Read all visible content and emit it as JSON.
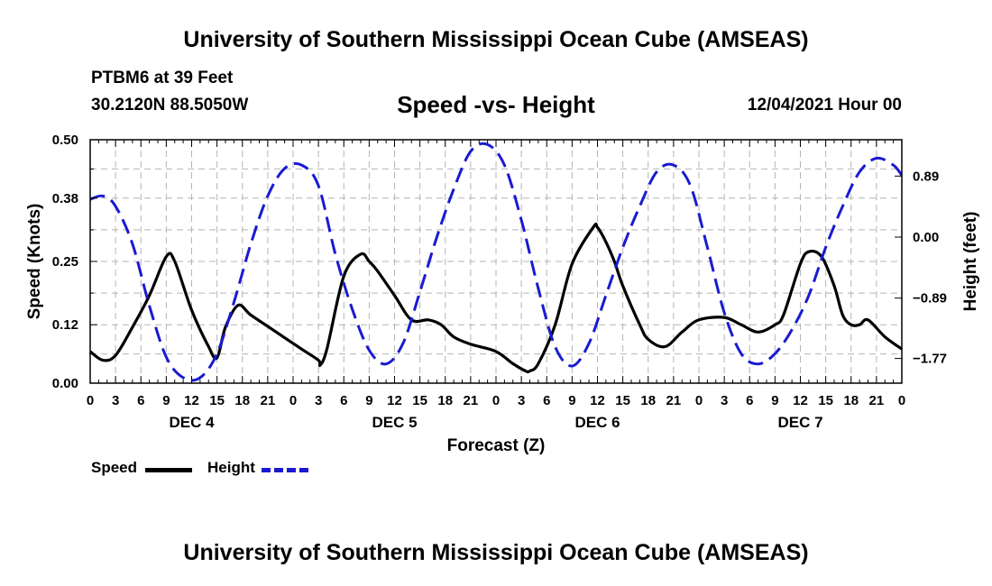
{
  "header": {
    "title": "University of Southern Mississippi Ocean Cube (AMSEAS)",
    "station": "PTBM6 at 39 Feet",
    "coords": "30.2120N  88.5050W",
    "subtitle": "Speed -vs- Height",
    "datetime": "12/04/2021 Hour 00"
  },
  "footer": {
    "title": "University of Southern Mississippi Ocean Cube (AMSEAS)"
  },
  "colors": {
    "speed": "#000000",
    "height": "#1a1ad0",
    "grid": "#b4b4b4"
  },
  "legend": {
    "speed_label": "Speed",
    "height_label": "Height"
  },
  "chart_data": {
    "type": "line",
    "title": "Speed -vs- Height",
    "xlabel": "Forecast (Z)",
    "ylabel": "Speed (Knots)",
    "y2label": "Height (feet)",
    "xlim": [
      0,
      96
    ],
    "ylim": [
      0,
      0.5
    ],
    "y2lim": [
      -2.13,
      1.42
    ],
    "grid": true,
    "legend_position": "bottom-left",
    "x_ticks": [
      0,
      3,
      6,
      9,
      12,
      15,
      18,
      21,
      24,
      27,
      30,
      33,
      36,
      39,
      42,
      45,
      48,
      51,
      54,
      57,
      60,
      63,
      66,
      69,
      72,
      75,
      78,
      81,
      84,
      87,
      90,
      93,
      96
    ],
    "x_tick_labels": [
      "0",
      "3",
      "6",
      "9",
      "12",
      "15",
      "18",
      "21",
      "0",
      "3",
      "6",
      "9",
      "12",
      "15",
      "18",
      "21",
      "0",
      "3",
      "6",
      "9",
      "12",
      "15",
      "18",
      "21",
      "0",
      "3",
      "6",
      "9",
      "12",
      "15",
      "18",
      "21",
      "0"
    ],
    "day_labels": [
      {
        "x": 12,
        "label": "DEC 4"
      },
      {
        "x": 36,
        "label": "DEC 5"
      },
      {
        "x": 60,
        "label": "DEC 6"
      },
      {
        "x": 84,
        "label": "DEC 7"
      }
    ],
    "y_ticks": [
      0.0,
      0.12,
      0.25,
      0.38,
      0.5
    ],
    "y_tick_labels": [
      "0.00",
      "0.12",
      "0.25",
      "0.38",
      "0.50"
    ],
    "y2_ticks": [
      0.89,
      0.0,
      -0.89,
      -1.77
    ],
    "y2_tick_labels": [
      "0.89",
      "0.00",
      "−0.89",
      "−1.77"
    ],
    "series": [
      {
        "name": "Speed",
        "axis": "left",
        "style": "solid",
        "x": [
          0,
          1.5,
          3,
          5,
          7,
          9,
          10,
          12,
          14,
          15,
          16,
          17.5,
          19,
          22,
          25,
          27,
          27.2,
          28,
          30,
          32,
          33,
          34,
          36,
          38,
          40,
          41.5,
          43,
          45,
          48,
          50,
          51.5,
          52,
          53,
          55,
          57,
          59.5,
          60,
          61,
          62,
          63,
          65,
          66,
          68,
          70,
          72,
          75,
          77,
          79,
          81,
          82,
          84,
          85,
          86.5,
          88,
          89,
          90,
          91,
          92,
          94,
          96
        ],
        "y": [
          0.065,
          0.047,
          0.057,
          0.115,
          0.18,
          0.26,
          0.25,
          0.15,
          0.075,
          0.052,
          0.115,
          0.16,
          0.14,
          0.105,
          0.07,
          0.047,
          0.037,
          0.07,
          0.22,
          0.265,
          0.25,
          0.23,
          0.18,
          0.13,
          0.13,
          0.12,
          0.095,
          0.08,
          0.065,
          0.04,
          0.025,
          0.025,
          0.04,
          0.12,
          0.245,
          0.32,
          0.32,
          0.29,
          0.25,
          0.2,
          0.12,
          0.09,
          0.075,
          0.105,
          0.13,
          0.135,
          0.12,
          0.105,
          0.12,
          0.14,
          0.245,
          0.27,
          0.26,
          0.2,
          0.14,
          0.12,
          0.12,
          0.13,
          0.095,
          0.07
        ]
      },
      {
        "name": "Height",
        "axis": "right",
        "style": "dashed",
        "x": [
          0,
          1.5,
          3,
          5,
          7,
          9,
          11,
          13,
          15,
          17,
          19,
          21,
          23,
          25,
          27,
          29,
          31,
          33,
          35,
          37,
          39,
          41,
          43,
          45,
          47,
          49,
          51,
          53,
          55,
          57,
          59,
          61,
          63,
          65,
          67,
          69,
          71,
          73,
          75,
          77,
          79,
          81,
          83,
          85,
          87,
          89,
          91,
          93,
          95,
          96
        ],
        "y": [
          0.55,
          0.6,
          0.45,
          -0.1,
          -1.0,
          -1.75,
          -2.05,
          -2.05,
          -1.7,
          -0.95,
          -0.1,
          0.6,
          1.0,
          1.05,
          0.75,
          -0.25,
          -1.05,
          -1.65,
          -1.85,
          -1.55,
          -0.8,
          0.0,
          0.7,
          1.25,
          1.35,
          1.05,
          0.25,
          -0.75,
          -1.6,
          -1.88,
          -1.55,
          -0.85,
          -0.15,
          0.45,
          0.95,
          1.05,
          0.75,
          -0.15,
          -1.1,
          -1.7,
          -1.85,
          -1.7,
          -1.35,
          -0.85,
          -0.15,
          0.45,
          0.95,
          1.15,
          1.05,
          0.9
        ]
      }
    ]
  }
}
